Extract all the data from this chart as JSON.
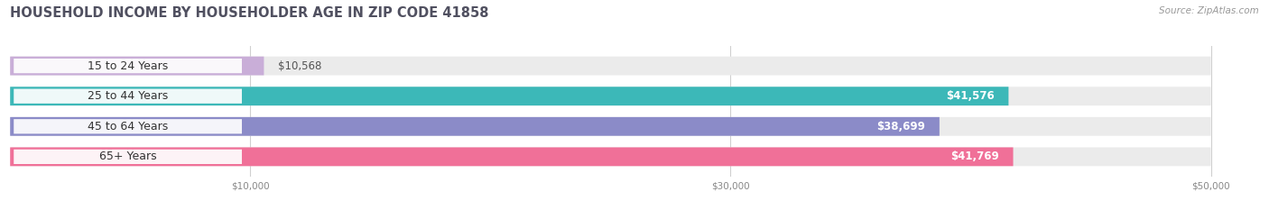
{
  "title": "HOUSEHOLD INCOME BY HOUSEHOLDER AGE IN ZIP CODE 41858",
  "source": "Source: ZipAtlas.com",
  "categories": [
    "15 to 24 Years",
    "25 to 44 Years",
    "45 to 64 Years",
    "65+ Years"
  ],
  "values": [
    10568,
    41576,
    38699,
    41769
  ],
  "value_labels": [
    "$10,568",
    "$41,576",
    "$38,699",
    "$41,769"
  ],
  "bar_colors": [
    "#c9aed8",
    "#3cb8b8",
    "#8b8bc8",
    "#f07098"
  ],
  "bar_bg_color": "#ebebeb",
  "background_color": "#ffffff",
  "xlim": [
    0,
    52000
  ],
  "xticks": [
    10000,
    30000,
    50000
  ],
  "xtick_labels": [
    "$10,000",
    "$30,000",
    "$50,000"
  ],
  "title_color": "#505060",
  "title_fontsize": 10.5,
  "source_fontsize": 7.5,
  "label_fontsize": 9,
  "value_fontsize": 8.5,
  "bar_height": 0.62,
  "value_label_outside": [
    true,
    false,
    false,
    false
  ],
  "value_label_outside_color": "#555555",
  "value_label_inside_color": "#ffffff"
}
